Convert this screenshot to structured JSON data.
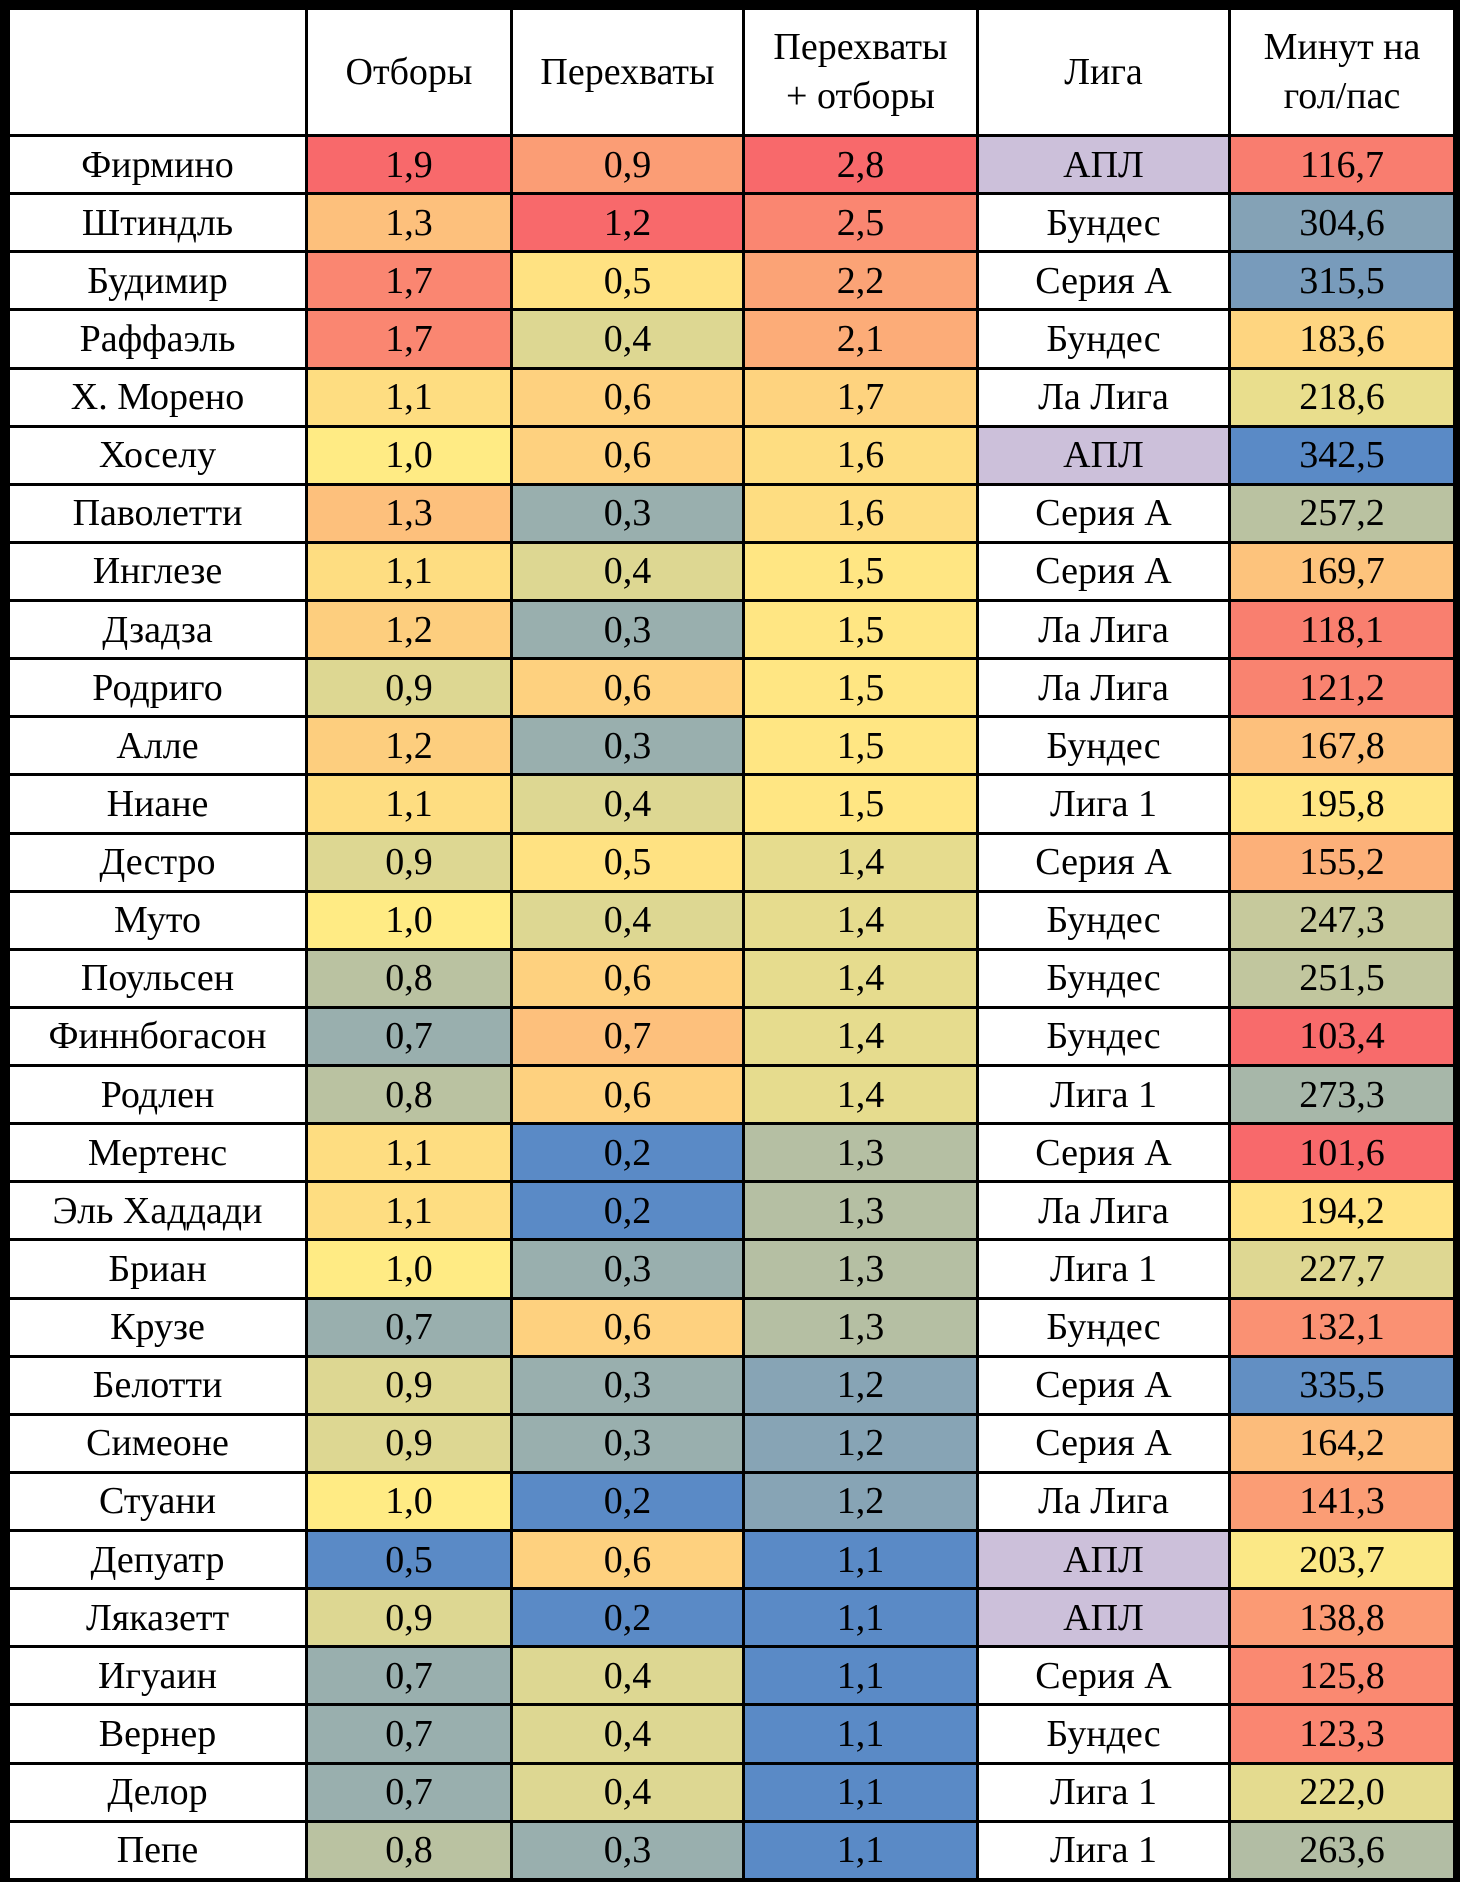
{
  "chart_data": {
    "type": "table",
    "columns": [
      "",
      "Отборы",
      "Перехваты",
      "Перехваты + отборы",
      "Лига",
      "Минут на гол/пас"
    ],
    "header_lines": [
      [
        ""
      ],
      [
        "Отборы"
      ],
      [
        "Перехваты"
      ],
      [
        "Перехваты",
        "+ отборы"
      ],
      [
        "Лига"
      ],
      [
        "Минут на",
        "гол/пас"
      ]
    ],
    "rows": [
      {
        "name": "Фирмино",
        "tackles": "1,9",
        "interceptions": "0,9",
        "total": "2,8",
        "league": "АПЛ",
        "minutes": "116,7"
      },
      {
        "name": "Штиндль",
        "tackles": "1,3",
        "interceptions": "1,2",
        "total": "2,5",
        "league": "Бундес",
        "minutes": "304,6"
      },
      {
        "name": "Будимир",
        "tackles": "1,7",
        "interceptions": "0,5",
        "total": "2,2",
        "league": "Серия А",
        "minutes": "315,5"
      },
      {
        "name": "Раффаэль",
        "tackles": "1,7",
        "interceptions": "0,4",
        "total": "2,1",
        "league": "Бундес",
        "minutes": "183,6"
      },
      {
        "name": "Х. Морено",
        "tackles": "1,1",
        "interceptions": "0,6",
        "total": "1,7",
        "league": "Ла Лига",
        "minutes": "218,6"
      },
      {
        "name": "Хоселу",
        "tackles": "1,0",
        "interceptions": "0,6",
        "total": "1,6",
        "league": "АПЛ",
        "minutes": "342,5"
      },
      {
        "name": "Паволетти",
        "tackles": "1,3",
        "interceptions": "0,3",
        "total": "1,6",
        "league": "Серия А",
        "minutes": "257,2"
      },
      {
        "name": "Инглезе",
        "tackles": "1,1",
        "interceptions": "0,4",
        "total": "1,5",
        "league": "Серия А",
        "minutes": "169,7"
      },
      {
        "name": "Дзадза",
        "tackles": "1,2",
        "interceptions": "0,3",
        "total": "1,5",
        "league": "Ла Лига",
        "minutes": "118,1"
      },
      {
        "name": "Родриго",
        "tackles": "0,9",
        "interceptions": "0,6",
        "total": "1,5",
        "league": "Ла Лига",
        "minutes": "121,2"
      },
      {
        "name": "Алле",
        "tackles": "1,2",
        "interceptions": "0,3",
        "total": "1,5",
        "league": "Бундес",
        "minutes": "167,8"
      },
      {
        "name": "Ниане",
        "tackles": "1,1",
        "interceptions": "0,4",
        "total": "1,5",
        "league": "Лига 1",
        "minutes": "195,8"
      },
      {
        "name": "Дестро",
        "tackles": "0,9",
        "interceptions": "0,5",
        "total": "1,4",
        "league": "Серия А",
        "minutes": "155,2"
      },
      {
        "name": "Муто",
        "tackles": "1,0",
        "interceptions": "0,4",
        "total": "1,4",
        "league": "Бундес",
        "minutes": "247,3"
      },
      {
        "name": "Поульсен",
        "tackles": "0,8",
        "interceptions": "0,6",
        "total": "1,4",
        "league": "Бундес",
        "minutes": "251,5"
      },
      {
        "name": "Финнбогасон",
        "tackles": "0,7",
        "interceptions": "0,7",
        "total": "1,4",
        "league": "Бундес",
        "minutes": "103,4"
      },
      {
        "name": "Родлен",
        "tackles": "0,8",
        "interceptions": "0,6",
        "total": "1,4",
        "league": "Лига 1",
        "minutes": "273,3"
      },
      {
        "name": "Мертенс",
        "tackles": "1,1",
        "interceptions": "0,2",
        "total": "1,3",
        "league": "Серия А",
        "minutes": "101,6"
      },
      {
        "name": "Эль Хаддади",
        "tackles": "1,1",
        "interceptions": "0,2",
        "total": "1,3",
        "league": "Ла Лига",
        "minutes": "194,2"
      },
      {
        "name": "Бриан",
        "tackles": "1,0",
        "interceptions": "0,3",
        "total": "1,3",
        "league": "Лига 1",
        "minutes": "227,7"
      },
      {
        "name": "Крузе",
        "tackles": "0,7",
        "interceptions": "0,6",
        "total": "1,3",
        "league": "Бундес",
        "minutes": "132,1"
      },
      {
        "name": "Белотти",
        "tackles": "0,9",
        "interceptions": "0,3",
        "total": "1,2",
        "league": "Серия А",
        "minutes": "335,5"
      },
      {
        "name": "Симеоне",
        "tackles": "0,9",
        "interceptions": "0,3",
        "total": "1,2",
        "league": "Серия А",
        "minutes": "164,2"
      },
      {
        "name": "Стуани",
        "tackles": "1,0",
        "interceptions": "0,2",
        "total": "1,2",
        "league": "Ла Лига",
        "minutes": "141,3"
      },
      {
        "name": "Депуатр",
        "tackles": "0,5",
        "interceptions": "0,6",
        "total": "1,1",
        "league": "АПЛ",
        "minutes": "203,7"
      },
      {
        "name": "Ляказетт",
        "tackles": "0,9",
        "interceptions": "0,2",
        "total": "1,1",
        "league": "АПЛ",
        "minutes": "138,8"
      },
      {
        "name": "Игуаин",
        "tackles": "0,7",
        "interceptions": "0,4",
        "total": "1,1",
        "league": "Серия А",
        "minutes": "125,8"
      },
      {
        "name": "Вернер",
        "tackles": "0,7",
        "interceptions": "0,4",
        "total": "1,1",
        "league": "Бундес",
        "minutes": "123,3"
      },
      {
        "name": "Делор",
        "tackles": "0,7",
        "interceptions": "0,4",
        "total": "1,1",
        "league": "Лига 1",
        "minutes": "222,0"
      },
      {
        "name": "Пепе",
        "tackles": "0,8",
        "interceptions": "0,3",
        "total": "1,1",
        "league": "Лига 1",
        "minutes": "263,6"
      }
    ],
    "heatmap": {
      "description_colors": {
        "high": "#f8696b",
        "mid": "#ffeb84",
        "neutral": "#a9b8a8",
        "low": "#5a8ac6"
      },
      "tackles": {
        "min": 0.5,
        "mid": 1.0,
        "max": 1.9
      },
      "interceptions": {
        "min": 0.2,
        "mid": 0.45,
        "max": 1.2
      },
      "total": {
        "min": 1.1,
        "mid": 1.45,
        "max": 2.8
      },
      "minutes": {
        "min": 101.6,
        "mid": 200.0,
        "max": 342.5,
        "reverse": true
      }
    },
    "league_colors": {
      "АПЛ": "#ccc0da",
      "default": "#ffffff"
    }
  }
}
